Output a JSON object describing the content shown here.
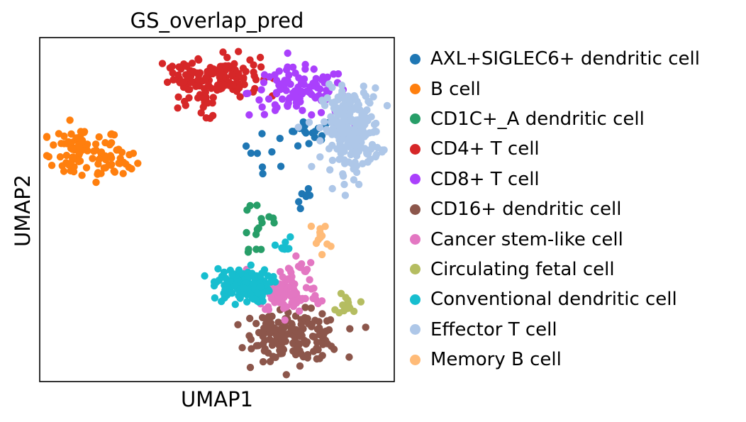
{
  "chart_data": {
    "type": "scatter",
    "title": "GS_overlap_pred",
    "xlabel": "UMAP1",
    "ylabel": "UMAP2",
    "ticks": "none",
    "grid": false,
    "legend_position": "right",
    "series": [
      {
        "name": "AXL+SIGLEC6+ dendritic cell",
        "color": "#1f77b4",
        "clusters": [
          {
            "center": [
              0.76,
              0.72
            ],
            "spread": [
              0.04,
              0.025
            ],
            "n": 18
          },
          {
            "center": [
              0.64,
              0.67
            ],
            "spread": [
              0.035,
              0.025
            ],
            "n": 8
          },
          {
            "center": [
              0.75,
              0.53
            ],
            "spread": [
              0.012,
              0.02
            ],
            "n": 7
          }
        ]
      },
      {
        "name": "B cell",
        "color": "#ff7f0e",
        "clusters": [
          {
            "center": [
              0.12,
              0.66
            ],
            "spread": [
              0.055,
              0.04
            ],
            "n": 60
          },
          {
            "center": [
              0.22,
              0.64
            ],
            "spread": [
              0.03,
              0.025
            ],
            "n": 25
          },
          {
            "center": [
              0.08,
              0.68
            ],
            "spread": [
              0.03,
              0.03
            ],
            "n": 20
          }
        ]
      },
      {
        "name": "CD1C+_A dendritic cell",
        "color": "#279e68",
        "clusters": [
          {
            "center": [
              0.62,
              0.45
            ],
            "spread": [
              0.035,
              0.06
            ],
            "n": 16
          }
        ]
      },
      {
        "name": "CD4+ T cell",
        "color": "#d62728",
        "clusters": [
          {
            "center": [
              0.52,
              0.89
            ],
            "spread": [
              0.05,
              0.03
            ],
            "n": 100
          },
          {
            "center": [
              0.42,
              0.88
            ],
            "spread": [
              0.03,
              0.025
            ],
            "n": 40
          },
          {
            "center": [
              0.46,
              0.81
            ],
            "spread": [
              0.03,
              0.025
            ],
            "n": 14
          }
        ]
      },
      {
        "name": "CD8+ T cell",
        "color": "#aa40fc",
        "clusters": [
          {
            "center": [
              0.73,
              0.84
            ],
            "spread": [
              0.07,
              0.035
            ],
            "n": 110
          }
        ]
      },
      {
        "name": "CD16+ dendritic cell",
        "color": "#8c564b",
        "clusters": [
          {
            "center": [
              0.73,
              0.13
            ],
            "spread": [
              0.06,
              0.035
            ],
            "n": 140
          },
          {
            "center": [
              0.64,
              0.14
            ],
            "spread": [
              0.03,
              0.03
            ],
            "n": 30
          }
        ]
      },
      {
        "name": "Cancer stem-like cell",
        "color": "#e377c2",
        "clusters": [
          {
            "center": [
              0.7,
              0.25
            ],
            "spread": [
              0.045,
              0.025
            ],
            "n": 90
          },
          {
            "center": [
              0.7,
              0.32
            ],
            "spread": [
              0.04,
              0.025
            ],
            "n": 20
          }
        ]
      },
      {
        "name": "Circulating fetal cell",
        "color": "#b5bd61",
        "clusters": [
          {
            "center": [
              0.87,
              0.23
            ],
            "spread": [
              0.015,
              0.018
            ],
            "n": 14
          }
        ]
      },
      {
        "name": "Conventional dendritic cell",
        "color": "#17becf",
        "clusters": [
          {
            "center": [
              0.57,
              0.28
            ],
            "spread": [
              0.04,
              0.025
            ],
            "n": 120
          },
          {
            "center": [
              0.69,
              0.39
            ],
            "spread": [
              0.012,
              0.015
            ],
            "n": 8
          }
        ]
      },
      {
        "name": "Effector T cell",
        "color": "#aec7e8",
        "clusters": [
          {
            "center": [
              0.88,
              0.73
            ],
            "spread": [
              0.04,
              0.06
            ],
            "n": 240
          }
        ]
      },
      {
        "name": "Memory B cell",
        "color": "#ffbb78",
        "clusters": [
          {
            "center": [
              0.79,
              0.42
            ],
            "spread": [
              0.012,
              0.025
            ],
            "n": 12
          }
        ]
      }
    ]
  }
}
